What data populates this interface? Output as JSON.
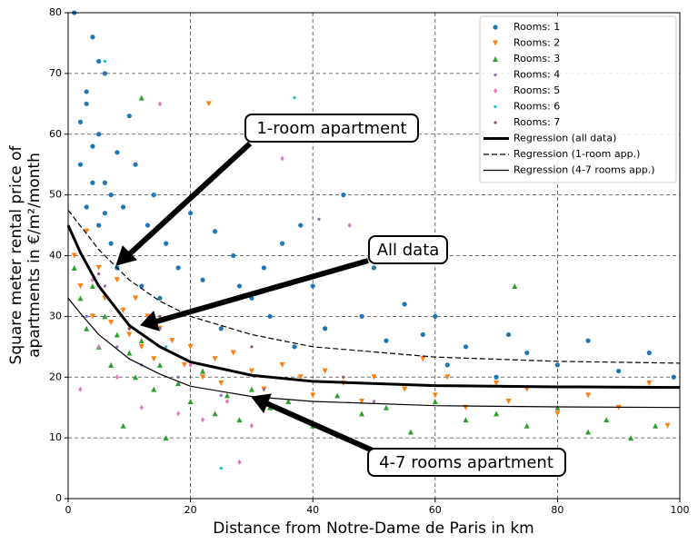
{
  "chart_data": {
    "type": "scatter",
    "xlabel": "Distance from Notre-Dame de Paris in km",
    "ylabel": [
      "Square meter rental price of",
      "apartments in €/m²/month"
    ],
    "xlim": [
      0,
      100
    ],
    "ylim": [
      0,
      80
    ],
    "xticks": [
      0,
      20,
      40,
      60,
      80,
      100
    ],
    "yticks": [
      0,
      10,
      20,
      30,
      40,
      50,
      60,
      70,
      80
    ],
    "grid": true,
    "legend": "upper right",
    "annotations": [
      "1-room apartment",
      "All data",
      "4-7 rooms apartment"
    ],
    "series": [
      {
        "name": "Rooms: 1",
        "color": "#1f77b4",
        "marker": "circle",
        "x": [
          1,
          2,
          2,
          3,
          3,
          4,
          4,
          5,
          5,
          6,
          6,
          7,
          7,
          8,
          8,
          9,
          10,
          10,
          11,
          12,
          13,
          14,
          15,
          16,
          18,
          20,
          22,
          24,
          25,
          27,
          28,
          30,
          32,
          33,
          35,
          37,
          38,
          40,
          42,
          45,
          48,
          50,
          52,
          55,
          58,
          60,
          62,
          65,
          70,
          72,
          75,
          80,
          85,
          90,
          95,
          99,
          4,
          6,
          3,
          5
        ],
        "values": [
          80,
          55,
          62,
          48,
          67,
          58,
          76,
          45,
          60,
          52,
          70,
          50,
          42,
          57,
          38,
          48,
          63,
          40,
          55,
          35,
          45,
          50,
          33,
          42,
          38,
          47,
          36,
          44,
          28,
          40,
          35,
          33,
          38,
          30,
          42,
          25,
          45,
          35,
          28,
          50,
          30,
          38,
          26,
          32,
          27,
          30,
          22,
          25,
          20,
          27,
          24,
          22,
          26,
          21,
          24,
          20,
          52,
          47,
          65,
          72
        ]
      },
      {
        "name": "Rooms: 2",
        "color": "#ff7f0e",
        "marker": "triangle-down",
        "x": [
          1,
          2,
          3,
          4,
          5,
          6,
          7,
          8,
          9,
          10,
          11,
          12,
          13,
          14,
          15,
          17,
          19,
          20,
          22,
          24,
          25,
          27,
          30,
          32,
          35,
          38,
          40,
          42,
          45,
          48,
          50,
          55,
          58,
          60,
          62,
          65,
          70,
          72,
          75,
          80,
          85,
          90,
          95,
          98,
          23
        ],
        "values": [
          40,
          35,
          44,
          30,
          38,
          33,
          29,
          36,
          31,
          27,
          33,
          25,
          30,
          23,
          28,
          26,
          22,
          25,
          20,
          23,
          19,
          24,
          21,
          18,
          22,
          20,
          17,
          21,
          19,
          16,
          20,
          18,
          23,
          17,
          20,
          15,
          19,
          16,
          18,
          14,
          17,
          15,
          19,
          12,
          65
        ]
      },
      {
        "name": "Rooms: 3",
        "color": "#2ca02c",
        "marker": "triangle-up",
        "x": [
          1,
          2,
          3,
          4,
          5,
          6,
          7,
          8,
          9,
          10,
          11,
          12,
          14,
          15,
          16,
          18,
          20,
          22,
          24,
          26,
          28,
          30,
          33,
          36,
          40,
          44,
          48,
          52,
          56,
          60,
          65,
          70,
          75,
          80,
          85,
          88,
          92,
          96,
          12,
          73
        ],
        "values": [
          38,
          33,
          28,
          35,
          25,
          30,
          22,
          27,
          12,
          24,
          20,
          26,
          18,
          22,
          10,
          19,
          16,
          21,
          14,
          17,
          13,
          18,
          15,
          16,
          12,
          17,
          14,
          15,
          11,
          16,
          13,
          14,
          12,
          15,
          11,
          13,
          10,
          12,
          66,
          35
        ]
      },
      {
        "name": "Rooms: 4",
        "color": "#9467bd",
        "marker": "point",
        "x": [
          3,
          8,
          12,
          18,
          25,
          32,
          41,
          50,
          6,
          15
        ],
        "values": [
          30,
          25,
          22,
          20,
          17,
          18,
          46,
          16,
          35,
          28
        ]
      },
      {
        "name": "Rooms: 5",
        "color": "#e377c2",
        "marker": "diamond",
        "x": [
          2,
          5,
          8,
          12,
          15,
          18,
          22,
          26,
          30,
          35,
          10,
          20,
          28,
          4,
          46
        ],
        "values": [
          18,
          25,
          20,
          15,
          65,
          14,
          13,
          16,
          12,
          56,
          28,
          22,
          6,
          36,
          45
        ]
      },
      {
        "name": "Rooms: 6",
        "color": "#17becf",
        "marker": "point",
        "x": [
          6,
          25,
          37,
          16
        ],
        "values": [
          72,
          5,
          66,
          25
        ]
      },
      {
        "name": "Rooms: 7",
        "color": "#8c564b",
        "marker": "point",
        "x": [
          5,
          15,
          30,
          45,
          10
        ],
        "values": [
          37,
          30,
          25,
          20,
          28
        ]
      }
    ],
    "regressions": [
      {
        "name": "Regression (all data)",
        "color": "#000000",
        "dash": false,
        "width": 3,
        "x": [
          0,
          2,
          5,
          10,
          15,
          20,
          30,
          40,
          60,
          80,
          100
        ],
        "values": [
          45,
          40.5,
          35,
          28.5,
          25,
          22.5,
          20.3,
          19.3,
          18.6,
          18.4,
          18.3
        ]
      },
      {
        "name": "Regression (1-room app.)",
        "color": "#000000",
        "dash": true,
        "width": 1.2,
        "x": [
          0,
          5,
          10,
          15,
          20,
          30,
          40,
          60,
          80,
          100
        ],
        "values": [
          47.5,
          41,
          36,
          32.5,
          30,
          27,
          25,
          23.3,
          22.6,
          22.3
        ]
      },
      {
        "name": "Regression (4-7 rooms app.)",
        "color": "#000000",
        "dash": false,
        "width": 1.2,
        "x": [
          0,
          2,
          5,
          10,
          15,
          20,
          30,
          40,
          60,
          80,
          100
        ],
        "values": [
          33,
          30.5,
          27,
          23,
          20.5,
          18.5,
          16.8,
          16,
          15.3,
          15.1,
          15
        ]
      }
    ]
  }
}
